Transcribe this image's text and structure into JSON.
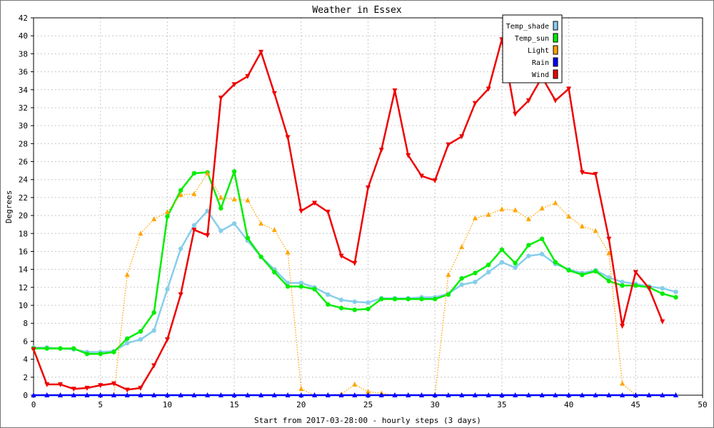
{
  "chart_data": {
    "type": "line",
    "title": "Weather in Essex",
    "xlabel": "Start from 2017-03-28:00 - hourly steps (3 days)",
    "ylabel": "Degrees",
    "xlim": [
      0,
      50
    ],
    "ylim": [
      0,
      42
    ],
    "x_ticks": [
      0,
      5,
      10,
      15,
      20,
      25,
      30,
      35,
      40,
      45,
      50
    ],
    "y_ticks": [
      0,
      2,
      4,
      6,
      8,
      10,
      12,
      14,
      16,
      18,
      20,
      22,
      24,
      26,
      28,
      30,
      32,
      34,
      36,
      38,
      40,
      42
    ],
    "grid": true,
    "legend_position": "top-right",
    "x": [
      0,
      1,
      2,
      3,
      4,
      5,
      6,
      7,
      8,
      9,
      10,
      11,
      12,
      13,
      14,
      15,
      16,
      17,
      18,
      19,
      20,
      21,
      22,
      23,
      24,
      25,
      26,
      27,
      28,
      29,
      30,
      31,
      32,
      33,
      34,
      35,
      36,
      37,
      38,
      39,
      40,
      41,
      42,
      43,
      44,
      45,
      46,
      47,
      48
    ],
    "series": [
      {
        "name": "Temp_shade",
        "color": "#87ceeb",
        "style": "solid",
        "marker": "circle",
        "values": [
          5.3,
          5.3,
          5.2,
          5.1,
          4.8,
          4.8,
          4.9,
          5.8,
          6.2,
          7.2,
          11.8,
          16.3,
          18.9,
          20.5,
          18.3,
          19.1,
          17.2,
          15.4,
          14.0,
          12.5,
          12.5,
          12.0,
          11.2,
          10.6,
          10.4,
          10.3,
          10.8,
          10.8,
          10.8,
          10.9,
          10.9,
          11.3,
          12.3,
          12.6,
          13.7,
          14.8,
          14.2,
          15.5,
          15.7,
          14.6,
          14.0,
          13.6,
          13.9,
          13.1,
          12.6,
          12.4,
          12.1,
          11.9,
          11.5
        ]
      },
      {
        "name": "Temp_sun",
        "color": "#00ee00",
        "style": "solid",
        "marker": "circle",
        "values": [
          5.2,
          5.2,
          5.2,
          5.2,
          4.6,
          4.6,
          4.8,
          6.3,
          7.1,
          9.2,
          19.9,
          22.8,
          24.7,
          24.8,
          20.8,
          24.9,
          17.5,
          15.4,
          13.7,
          12.1,
          12.1,
          11.8,
          10.1,
          9.7,
          9.5,
          9.6,
          10.7,
          10.7,
          10.7,
          10.7,
          10.7,
          11.2,
          13.0,
          13.6,
          14.5,
          16.2,
          14.7,
          16.7,
          17.4,
          14.8,
          13.9,
          13.4,
          13.8,
          12.7,
          12.2,
          12.2,
          12.0,
          11.3,
          10.9
        ]
      },
      {
        "name": "Light",
        "color": "#ffa500",
        "style": "dotted",
        "marker": "triangle-up",
        "values": [
          0,
          0,
          0,
          0,
          0,
          0,
          0,
          13.4,
          18.0,
          19.6,
          20.4,
          22.3,
          22.4,
          24.7,
          22.0,
          21.8,
          21.7,
          19.1,
          18.4,
          15.9,
          0.7,
          0,
          0,
          0.1,
          1.2,
          0.4,
          0.2,
          0,
          0,
          0,
          0,
          13.4,
          16.5,
          19.7,
          20.1,
          20.7,
          20.6,
          19.6,
          20.8,
          21.4,
          19.9,
          18.8,
          18.3,
          15.8,
          1.3,
          0,
          0,
          0,
          0
        ]
      },
      {
        "name": "Rain",
        "color": "#0000ff",
        "style": "solid",
        "marker": "triangle-up",
        "values": [
          0,
          0,
          0,
          0,
          0,
          0,
          0,
          0,
          0,
          0,
          0,
          0,
          0,
          0,
          0,
          0,
          0,
          0,
          0,
          0,
          0,
          0,
          0,
          0,
          0,
          0,
          0,
          0,
          0,
          0,
          0,
          0,
          0,
          0,
          0,
          0,
          0,
          0,
          0,
          0,
          0,
          0,
          0,
          0,
          0,
          0,
          0,
          0,
          0
        ]
      },
      {
        "name": "Wind",
        "color": "#ee0000",
        "style": "solid",
        "marker": "triangle-down",
        "values": [
          5.1,
          1.2,
          1.2,
          0.7,
          0.8,
          1.1,
          1.3,
          0.6,
          0.8,
          3.3,
          6.2,
          11.2,
          18.4,
          17.8,
          33.1,
          34.6,
          35.5,
          38.2,
          33.6,
          28.7,
          20.5,
          21.4,
          20.4,
          15.5,
          14.7,
          23.1,
          27.3,
          33.9,
          26.7,
          24.4,
          23.9,
          27.9,
          28.8,
          32.5,
          34.1,
          39.6,
          31.3,
          32.8,
          35.4,
          32.8,
          34.1,
          24.8,
          24.6,
          17.4,
          7.7,
          13.7,
          11.9,
          8.2,
          null
        ]
      }
    ]
  }
}
